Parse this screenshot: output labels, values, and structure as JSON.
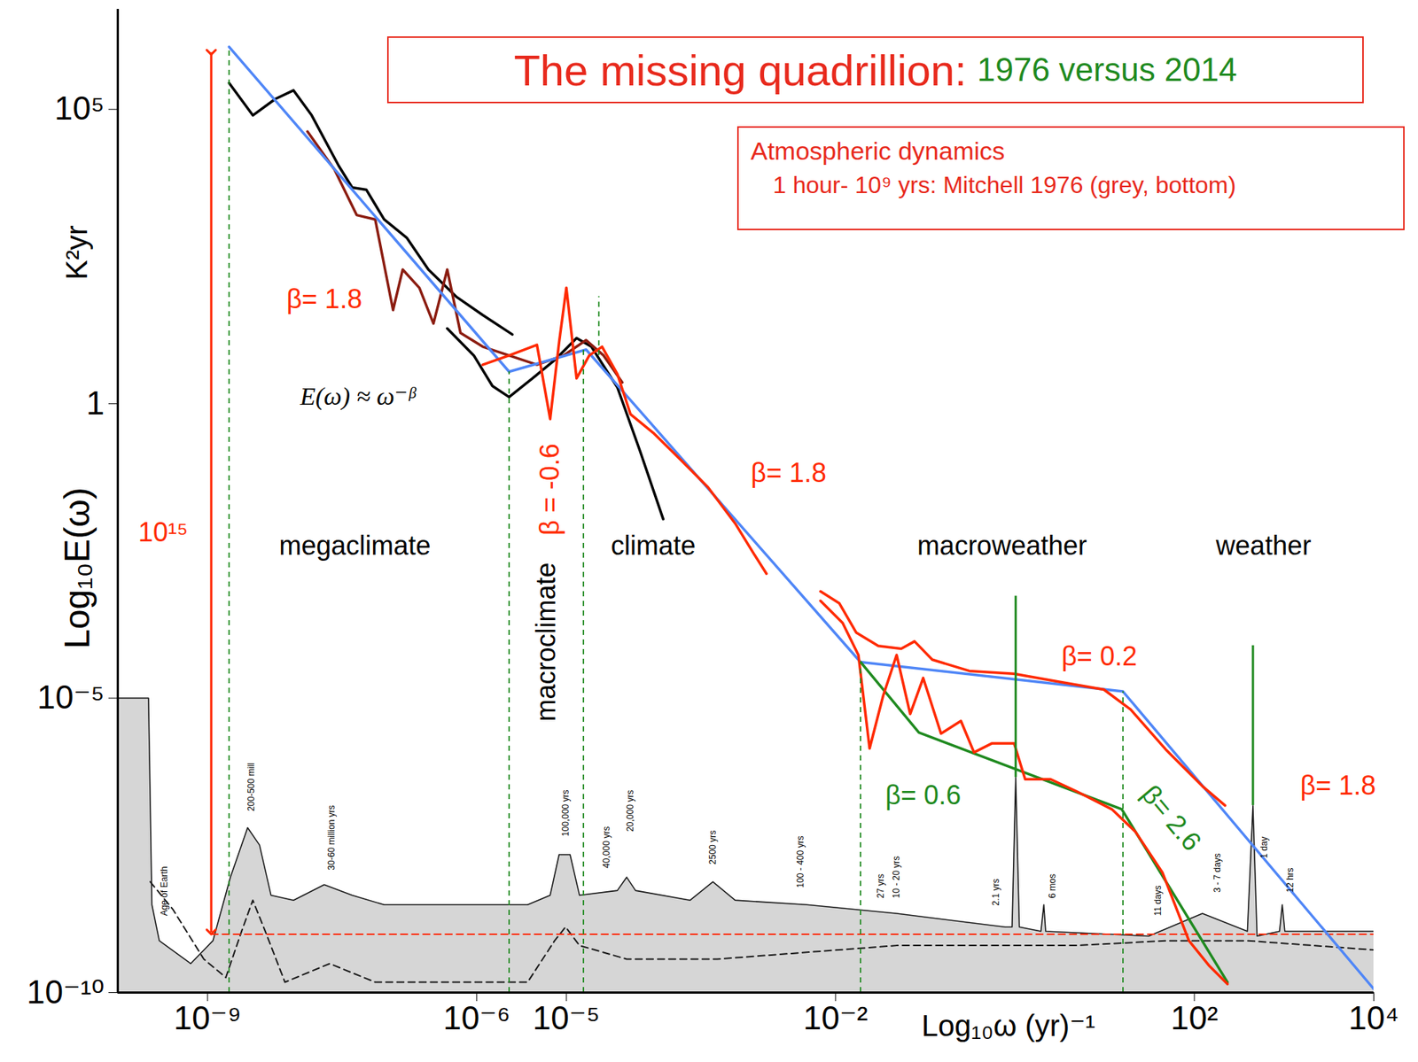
{
  "chart_data": {
    "type": "line",
    "title": "The missing quadrillion:",
    "subtitle": "1976 versus 2014",
    "note": [
      "Atmospheric dynamics",
      "1 hour- 10⁹ yrs: Mitchell 1976 (grey, bottom)"
    ],
    "x_label": "Log₁₀ω (yr)⁻¹",
    "y_label": "Log₁₀E(ω)",
    "y_label_units": "K²yr",
    "log": true,
    "grid": false,
    "xlim": [
      1e-10,
      10000
    ],
    "ylim": [
      1e-10,
      5000000
    ],
    "xticks": [
      {
        "value": 1e-09,
        "label": "10⁻⁹"
      },
      {
        "value": 1e-06,
        "label": "10⁻⁶"
      },
      {
        "value": 1e-05,
        "label": "10⁻⁵"
      },
      {
        "value": 0.01,
        "label": "10⁻²"
      },
      {
        "value": 100,
        "label": "10²"
      },
      {
        "value": 10000,
        "label": "10⁴"
      }
    ],
    "yticks": [
      {
        "value": 1e-10,
        "label": "10⁻¹⁰"
      },
      {
        "value": 1e-05,
        "label": "10⁻⁵"
      },
      1,
      {
        "value": 100000,
        "label": "10⁵"
      }
    ],
    "series": [
      {
        "type": "area",
        "color": "#1a1a1a",
        "line_style": "solid",
        "x": [
          1e-10,
          2.2e-10,
          2.4e-10,
          2.9e-10,
          6.5e-10,
          1.15e-09,
          1.8e-09,
          2.8e-09,
          3.8e-09,
          5.1e-09,
          9.1e-09,
          2e-08,
          4.1e-08,
          9.3e-08,
          3.7e-06,
          6.6e-06,
          8.3e-06,
          1.1e-05,
          1.4e-05,
          3.7e-05,
          4.7e-05,
          5.9e-05,
          0.00024,
          0.00043,
          0.00076,
          0.0048,
          0.048,
          0.78,
          0.93,
          1.02,
          1.12,
          1.95,
          2.1,
          2.2,
          31,
          123,
          390,
          450,
          500,
          890,
          955,
          1020,
          10000
        ],
        "values": [
          1e-05,
          1e-05,
          3.1e-09,
          7.6e-10,
          3.1e-10,
          7.6e-10,
          9.1e-09,
          6.3e-08,
          3.2e-08,
          4.5e-09,
          3.7e-09,
          6.8e-09,
          4.5e-09,
          3.1e-09,
          3.1e-09,
          4.5e-09,
          2.2e-08,
          2.2e-08,
          4.5e-09,
          5.4e-09,
          9.1e-09,
          5.4e-09,
          3.7e-09,
          7.6e-09,
          3.7e-09,
          3.1e-09,
          2.2e-09,
          1.3e-09,
          1.3e-09,
          4.5e-07,
          1.3e-09,
          1.1e-09,
          3.1e-09,
          1.1e-09,
          9.1e-10,
          2.2e-09,
          1.1e-09,
          1.5e-07,
          9.1e-10,
          1.1e-09,
          3.1e-09,
          1.1e-09,
          1.1e-09
        ]
      },
      {
        "type": "line",
        "color": "#1a1a1a",
        "line_style": "dashed",
        "x": [
          2.3e-10,
          4.1e-10,
          9.1e-10,
          1.6e-09,
          2.4e-09,
          3.2e-09,
          4.4e-09,
          7.3e-09,
          2.3e-08,
          7.4e-08,
          3.7e-06,
          7.4e-06,
          9.8e-06,
          1.4e-05,
          4.7e-05,
          0.00048,
          0.048,
          4.9,
          49,
          390,
          10000
        ],
        "values": [
          7.6e-09,
          2.6e-09,
          3.7e-10,
          1.8e-10,
          1.1e-09,
          3.7e-09,
          1.1e-09,
          1.5e-10,
          3.1e-10,
          1.5e-10,
          1.5e-10,
          7.6e-10,
          1.3e-09,
          6.3e-10,
          3.7e-10,
          3.7e-10,
          6.3e-10,
          6.3e-10,
          7.6e-10,
          7.6e-10,
          5.3e-10
        ]
      },
      {
        "type": "line",
        "color": "#ff2a00",
        "line_style": "dashed",
        "x": [
          1.1e-09,
          10000
        ],
        "values": [
          9.8e-10,
          9.8e-10
        ]
      },
      {
        "type": "line",
        "color": "#000000",
        "line_style": "solid",
        "x": [
          1.74e-09,
          3.2e-09,
          5.7e-09,
          9.1e-09,
          1.45e-08,
          2.9e-08,
          4.1e-08,
          5.9e-08,
          9.3e-08,
          1.66e-07,
          2.9e-07,
          5.9e-07,
          1.17e-06,
          2.5e-06
        ],
        "values": [
          280000,
          79000,
          150000,
          210000,
          79000,
          11000,
          4700,
          4300,
          1350,
          660,
          190,
          66,
          32,
          15
        ]
      },
      {
        "type": "line",
        "color": "#000000",
        "line_style": "solid",
        "x": [
          4.7e-07,
          9.3e-07,
          1.5e-06,
          2.3e-06,
          4.2e-06,
          7.4e-06,
          1.3e-05,
          1.9e-05,
          3.7e-05,
          6.6e-05,
          0.00012
        ],
        "values": [
          19,
          6.6,
          2.0,
          1.3,
          2.7,
          5.5,
          13,
          9.3,
          1.9,
          0.16,
          0.011
        ]
      },
      {
        "type": "line",
        "color": "#8b1c10",
        "line_style": "solid",
        "x": [
          1.3e-08,
          2.6e-08,
          4.6e-08,
          7.4e-08,
          1.17e-07,
          1.5e-07,
          2.3e-07,
          3.3e-07,
          4.7e-07,
          6.6e-07,
          1.17e-06,
          2.3e-06,
          4.7e-06,
          9.3e-06,
          1.66e-05,
          2.6e-05,
          4.2e-05
        ],
        "values": [
          42000,
          9500,
          1600,
          1350,
          39,
          190,
          93,
          23,
          190,
          16,
          9.3,
          6.6,
          4.6,
          6.6,
          12,
          6.6,
          2.3
        ]
      },
      {
        "type": "line",
        "color": "#4f86f7",
        "line_style": "solid",
        "x": [
          1.74e-09,
          2.3e-06,
          1.66e-05,
          0.019,
          16,
          10000
        ],
        "values": [
          1150000,
          3.5,
          8.3,
          4.1e-05,
          1.3e-05,
          1.15e-10
        ]
      },
      {
        "type": "line",
        "color": "#1f8a1f",
        "line_style": "solid",
        "x": [
          0.019,
          0.085,
          15.5,
          234
        ],
        "values": [
          4.1e-05,
          2.6e-06,
          1.3e-07,
          1.5e-10
        ]
      },
      {
        "type": "line",
        "color": "#ff2a00",
        "line_style": "solid",
        "x": [
          1.17e-06,
          2.3e-06,
          4.7e-06,
          6.6e-06,
          8.3e-06,
          1e-05,
          1.3e-05,
          1.8e-05,
          2.5e-05,
          3.7e-05,
          5.2e-05,
          9.3e-05,
          0.00019,
          0.00038,
          0.00076,
          0.0012,
          0.0017
        ],
        "values": [
          4.6,
          6.6,
          10,
          0.55,
          11,
          93,
          2.7,
          6.6,
          9.3,
          3.2,
          0.66,
          0.32,
          0.11,
          0.038,
          0.0093,
          0.003,
          0.0013
        ]
      },
      {
        "type": "line",
        "color": "#ff2a00",
        "line_style": "solid",
        "x": [
          0.0068,
          0.011,
          0.017,
          0.03,
          0.054,
          0.076,
          0.12,
          0.31,
          0.98,
          3.1,
          9.8,
          19.5,
          49,
          123,
          220
        ],
        "values": [
          0.00065,
          0.00041,
          0.00013,
          7.7e-05,
          6.9e-05,
          9.2e-05,
          4.5e-05,
          2.9e-05,
          2.6e-05,
          1.9e-05,
          1.4e-05,
          6.4e-06,
          1.3e-06,
          3.2e-07,
          1.5e-07
        ]
      },
      {
        "type": "line",
        "color": "#ff2a00",
        "line_style": "solid",
        "x": [
          0.0068,
          0.012,
          0.018,
          0.024,
          0.034,
          0.048,
          0.068,
          0.095,
          0.15,
          0.25,
          0.35,
          0.55,
          0.98,
          1.3,
          2.5,
          4.9,
          12,
          22,
          44,
          87,
          148,
          234
        ],
        "values": [
          0.00045,
          0.00019,
          5.4e-05,
          1.4e-06,
          1.1e-05,
          5.4e-05,
          5.4e-06,
          2.2e-05,
          2.5e-06,
          4.1e-06,
          1.2e-06,
          1.7e-06,
          1.7e-06,
          4.2e-07,
          4.2e-07,
          2.6e-07,
          1.3e-07,
          5.4e-08,
          1.1e-08,
          7.6e-10,
          2.8e-10,
          1.4e-10
        ]
      }
    ],
    "boundaries": [
      {
        "x": 1.74e-09,
        "y1": 1e-10,
        "y2": 1150000
      },
      {
        "x": 2.3e-06,
        "y1": 1e-10,
        "y2": 3.5
      },
      {
        "x": 1.55e-05,
        "y1": 1e-10,
        "y2": 8.3
      },
      {
        "x": 2.3e-05,
        "y1": 6.6,
        "y2": 66
      },
      {
        "x": 0.019,
        "y1": 1e-10,
        "y2": 4.1e-05
      },
      {
        "x": 16,
        "y1": 1e-10,
        "y2": 1.3e-05
      }
    ],
    "markers": [
      {
        "x": 1.02,
        "y1": 4.5e-07,
        "y2": 0.00054
      },
      {
        "x": 450,
        "y1": 1.5e-07,
        "y2": 7.8e-05
      }
    ],
    "arrows": [
      {
        "x": 1.1e-09,
        "y1": 930000,
        "y2": 1.07e-09,
        "color": "#ff2a00"
      }
    ],
    "annotations": [
      {
        "text": "megaclimate",
        "x": 4.4e-08,
        "y": 0.0038,
        "color": "#000000"
      },
      {
        "text": "climate",
        "x": 9.3e-05,
        "y": 0.0038,
        "color": "#000000"
      },
      {
        "text": "macroweather",
        "x": 0.72,
        "y": 0.0038,
        "color": "#000000"
      },
      {
        "text": "weather",
        "x": 590,
        "y": 0.0038,
        "color": "#000000"
      },
      {
        "text": "β= 1.8",
        "x": 2e-08,
        "y": 59,
        "color": "#ff2a00"
      },
      {
        "text": "β= 1.8",
        "x": 0.003,
        "y": 0.065,
        "color": "#ff2a00"
      },
      {
        "text": "β= 0.2",
        "x": 8.7,
        "y": 5e-05,
        "color": "#ff2a00"
      },
      {
        "text": "β= 0.6",
        "x": 0.095,
        "y": 2.2e-07,
        "color": "#1f8a1f"
      },
      {
        "text": "β= 1.8",
        "x": 4000,
        "y": 3.2e-07,
        "color": "#ff2a00"
      },
      {
        "text": "10¹⁵",
        "x": 3.2e-10,
        "y": 0.0065,
        "color": "#ff2a00"
      }
    ],
    "vertical_annotations": [
      {
        "text": "β = -0.6",
        "x": 6.6e-06,
        "y": 0.035,
        "color": "#ff2a00"
      },
      {
        "text": "macroclimate",
        "x": 6e-06,
        "y": 9e-05,
        "color": "#000000"
      }
    ],
    "slanted_annotations": [
      {
        "text": "β= 2.6",
        "x": 55,
        "y": 9.1e-08,
        "color": "#1f8a1f"
      }
    ],
    "formula": {
      "text": "E(ω) ≈ ω⁻ᵝ",
      "x": 4.7e-08,
      "y": 1.3
    },
    "period_labels": [
      {
        "text": "Age of Earth",
        "x": 3.3e-10,
        "y": 2e-09
      },
      {
        "text": "200-500 mill",
        "x": 3.1e-09,
        "y": 1.2e-07
      },
      {
        "text": "30-60 million yrs",
        "x": 2.4e-08,
        "y": 1.2e-08
      },
      {
        "text": "100,000 yrs",
        "x": 9.8e-06,
        "y": 4.5e-08
      },
      {
        "text": "40,000 yrs",
        "x": 2.8e-05,
        "y": 1.3e-08
      },
      {
        "text": "20,000 yrs",
        "x": 5.2e-05,
        "y": 5.4e-08
      },
      {
        "text": "2500 yrs",
        "x": 0.00043,
        "y": 1.5e-08
      },
      {
        "text": "100 - 400 yrs",
        "x": 0.0041,
        "y": 6e-09
      },
      {
        "text": "27 yrs",
        "x": 0.032,
        "y": 4e-09
      },
      {
        "text": "10 - 20 yrs",
        "x": 0.048,
        "y": 4e-09
      },
      {
        "text": "2.1 yrs",
        "x": 0.62,
        "y": 3e-09
      },
      {
        "text": "6 mos",
        "x": 2.6,
        "y": 4e-09
      },
      {
        "text": "11 days",
        "x": 39,
        "y": 2e-09
      },
      {
        "text": "3 - 7 days",
        "x": 180,
        "y": 5e-09
      },
      {
        "text": "1 day",
        "x": 600,
        "y": 1.9e-08
      },
      {
        "text": "12 hrs",
        "x": 1170,
        "y": 5e-09
      }
    ]
  }
}
